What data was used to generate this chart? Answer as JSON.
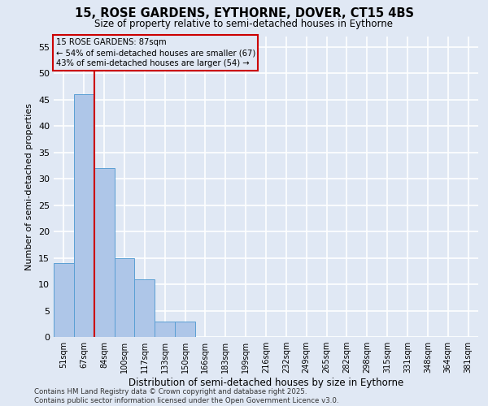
{
  "title_line1": "15, ROSE GARDENS, EYTHORNE, DOVER, CT15 4BS",
  "title_line2": "Size of property relative to semi-detached houses in Eythorne",
  "categories": [
    "51sqm",
    "67sqm",
    "84sqm",
    "100sqm",
    "117sqm",
    "133sqm",
    "150sqm",
    "166sqm",
    "183sqm",
    "199sqm",
    "216sqm",
    "232sqm",
    "249sqm",
    "265sqm",
    "282sqm",
    "298sqm",
    "315sqm",
    "331sqm",
    "348sqm",
    "364sqm",
    "381sqm"
  ],
  "values": [
    14,
    46,
    32,
    15,
    11,
    3,
    3,
    0,
    0,
    0,
    0,
    0,
    0,
    0,
    0,
    0,
    0,
    0,
    0,
    0,
    0
  ],
  "bar_color": "#aec6e8",
  "bar_edge_color": "#5a9fd4",
  "background_color": "#e0e8f4",
  "grid_color": "#ffffff",
  "ylabel": "Number of semi-detached properties",
  "xlabel": "Distribution of semi-detached houses by size in Eythorne",
  "ylim": [
    0,
    57
  ],
  "yticks": [
    0,
    5,
    10,
    15,
    20,
    25,
    30,
    35,
    40,
    45,
    50,
    55
  ],
  "annotation_title": "15 ROSE GARDENS: 87sqm",
  "annotation_line1": "← 54% of semi-detached houses are smaller (67)",
  "annotation_line2": "43% of semi-detached houses are larger (54) →",
  "vline_x_index": 2,
  "vline_color": "#cc0000",
  "footer_line1": "Contains HM Land Registry data © Crown copyright and database right 2025.",
  "footer_line2": "Contains public sector information licensed under the Open Government Licence v3.0.",
  "annotation_box_color": "#cc0000",
  "figsize": [
    6.0,
    5.0
  ],
  "dpi": 100
}
